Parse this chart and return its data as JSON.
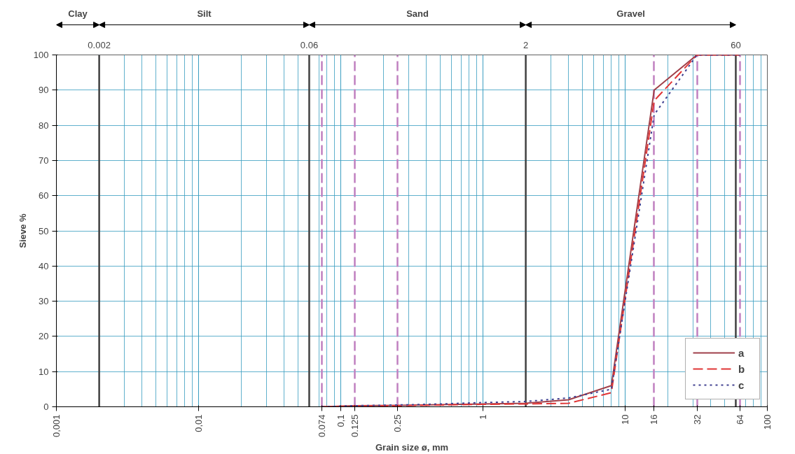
{
  "chart_data": {
    "type": "line",
    "xlabel": "Grain size ø, mm",
    "ylabel": "Sieve %",
    "log": "x",
    "xlim": [
      0.001,
      100
    ],
    "ylim": [
      0,
      100
    ],
    "xticks": [
      {
        "value": 0.001,
        "label": "0,001"
      },
      {
        "value": 0.01,
        "label": "0,01"
      },
      {
        "value": 0.074,
        "label": "0.074"
      },
      {
        "value": 0.1,
        "label": "0,1"
      },
      {
        "value": 0.125,
        "label": "0.125"
      },
      {
        "value": 0.25,
        "label": "0.25"
      },
      1,
      10,
      16,
      32,
      64,
      100
    ],
    "yticks": [
      0,
      10,
      20,
      30,
      40,
      50,
      60,
      70,
      80,
      90,
      100
    ],
    "x": [
      0.074,
      0.125,
      0.25,
      0.5,
      1,
      2,
      4,
      8,
      16,
      32,
      64
    ],
    "series": [
      {
        "name": "a",
        "color": "#a0404a",
        "line_style": "solid",
        "values": [
          0,
          0.3,
          0.4,
          0.6,
          0.8,
          1,
          2,
          6,
          90,
          100,
          100
        ]
      },
      {
        "name": "b",
        "color": "#e03535",
        "line_style": "dashed",
        "values": [
          0,
          0.2,
          0.3,
          0.5,
          0.7,
          0.8,
          1,
          4,
          87,
          100,
          100
        ]
      },
      {
        "name": "c",
        "color": "#404090",
        "line_style": "dotted",
        "values": [
          0,
          0.3,
          0.5,
          0.8,
          1.2,
          1.5,
          2.5,
          5,
          83,
          100,
          100
        ]
      }
    ],
    "ref_lines": [
      {
        "axis": "x",
        "value": 0.002,
        "label": "0.002",
        "color": "#404040",
        "line_style": "solid"
      },
      {
        "axis": "x",
        "value": 0.06,
        "label": "0.06",
        "color": "#404040",
        "line_style": "solid"
      },
      {
        "axis": "x",
        "value": 2,
        "label": "2",
        "color": "#404040",
        "line_style": "solid"
      },
      {
        "axis": "x",
        "value": 60,
        "label": "60",
        "color": "#404040",
        "line_style": "solid"
      }
    ],
    "annotations": [
      "Clay",
      "Silt",
      "Sand",
      "Gravel"
    ],
    "grid": true,
    "legend": "bottom right"
  }
}
